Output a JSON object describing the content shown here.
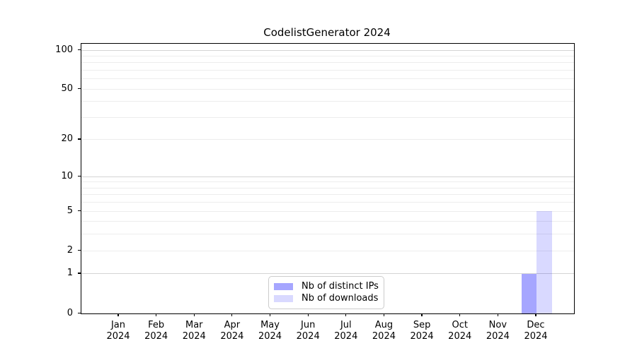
{
  "title": "CodelistGenerator 2024",
  "legend": {
    "items": [
      {
        "label": "Nb of distinct IPs",
        "swatch_color": "#a6a6ff"
      },
      {
        "label": "Nb of downloads",
        "swatch_color": "#d9d9ff"
      }
    ]
  },
  "colors": {
    "bar_distinct_ips": "#0000ff59",
    "bar_downloads": "#0000ff26",
    "major_grid": "#d4d4d4",
    "minor_grid": "#ededed",
    "axis": "#000000"
  },
  "chart_data": {
    "type": "bar",
    "title": "CodelistGenerator 2024",
    "xlabel": "",
    "ylabel": "",
    "categories": [
      "Jan 2024",
      "Feb 2024",
      "Mar 2024",
      "Apr 2024",
      "May 2024",
      "Jun 2024",
      "Jul 2024",
      "Aug 2024",
      "Sep 2024",
      "Oct 2024",
      "Nov 2024",
      "Dec 2024"
    ],
    "series": [
      {
        "name": "Nb of distinct IPs",
        "color": "#0000ff59",
        "values": [
          0,
          0,
          0,
          0,
          0,
          0,
          0,
          0,
          0,
          0,
          0,
          1
        ]
      },
      {
        "name": "Nb of downloads",
        "color": "#0000ff26",
        "values": [
          0,
          0,
          0,
          0,
          0,
          0,
          0,
          0,
          0,
          0,
          0,
          5
        ]
      }
    ],
    "yscale": "log1p",
    "ylim": [
      0,
      112
    ],
    "yticks": [
      0,
      1,
      2,
      5,
      10,
      20,
      50,
      100
    ],
    "y_major_grid": [
      1,
      10,
      100
    ],
    "y_minor_grid": [
      2,
      3,
      4,
      5,
      6,
      7,
      8,
      9,
      20,
      30,
      40,
      50,
      60,
      70,
      80,
      90
    ],
    "grid": "horizontal",
    "legend_position": "lower center"
  }
}
